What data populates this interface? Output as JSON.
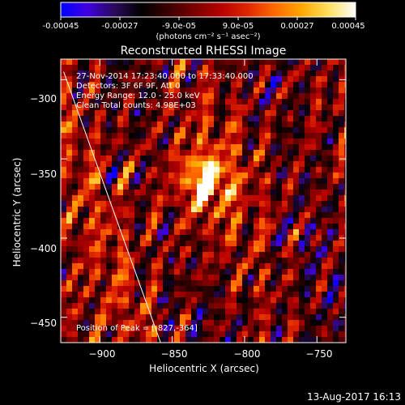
{
  "colorbar": {
    "ticks": [
      "-0.00045",
      "-0.00027",
      "-9.0e-05",
      "9.0e-05",
      "0.00027",
      "0.00045"
    ],
    "range": [
      -0.00045,
      0.00045
    ],
    "unit_label": "(photons cm⁻² s⁻¹ asec⁻²)",
    "colormap": [
      "#0000ff",
      "#4000e0",
      "#2a0a5a",
      "#000000",
      "#3a0000",
      "#7a0000",
      "#b80000",
      "#e02800",
      "#ff6a00",
      "#ffa800",
      "#ffe060",
      "#ffffff"
    ]
  },
  "chart_data": {
    "type": "heatmap",
    "title": "Reconstructed RHESSI Image",
    "xlabel": "Heliocentric X (arcsec)",
    "ylabel": "Heliocentric Y (arcsec)",
    "xlim": [
      -927,
      -730
    ],
    "ylim": [
      -466,
      -287
    ],
    "x_ticks": [
      -900,
      -850,
      -800,
      -750
    ],
    "y_ticks": [
      -300,
      -350,
      -400,
      -450
    ],
    "x_tick_labels": [
      "−900",
      "−850",
      "−800",
      "−750"
    ],
    "y_tick_labels": [
      "−300",
      "−350",
      "−400",
      "−450"
    ],
    "peak": [
      -827,
      -364
    ],
    "limb_line": {
      "start": [
        -925,
        -295
      ],
      "end": [
        -858,
        -466
      ]
    },
    "annotations": {
      "time_range": "27-Nov-2014 17:23:40.000 to 17:33:40.000",
      "detectors": "Detectors: 3F 6F 9F, Att 0",
      "energy": "Energy Range: 12.0 - 25.0 keV",
      "clean": "Clean     Total counts: 4.98E+03",
      "peak": "Position of Peak = [-827,-364]"
    }
  },
  "footer": {
    "timestamp": "13-Aug-2017 16:13"
  }
}
